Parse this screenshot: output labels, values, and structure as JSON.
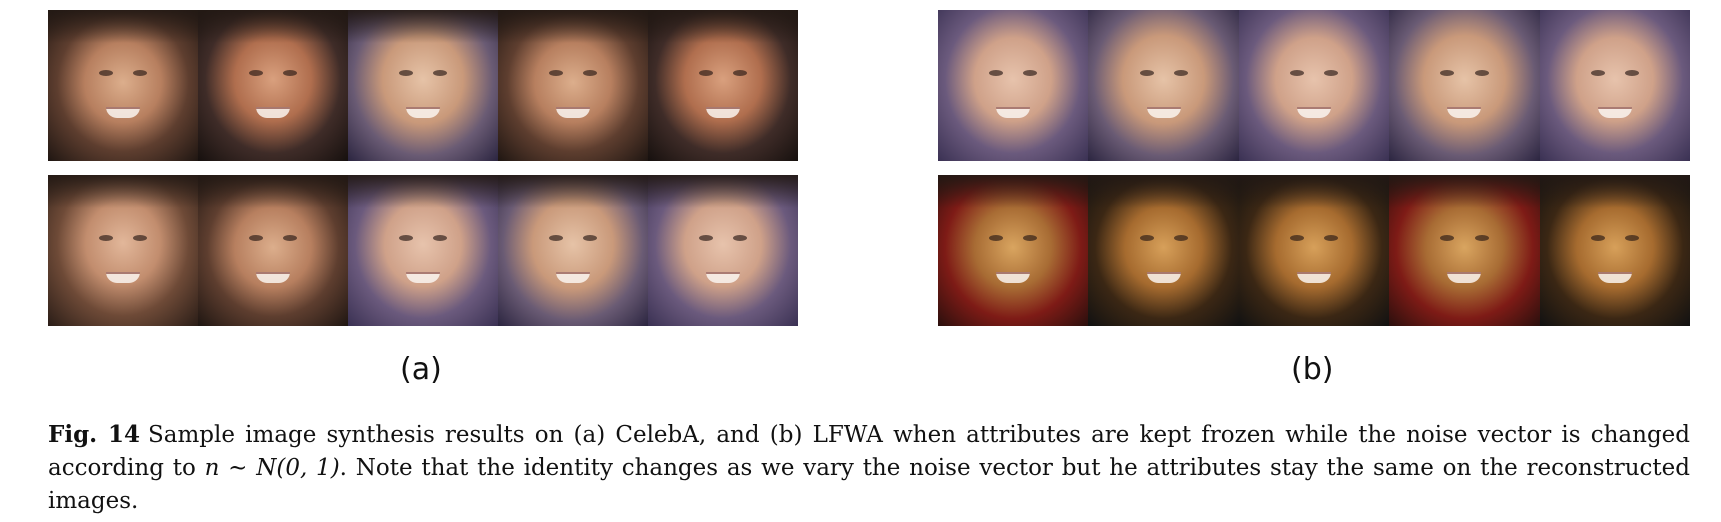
{
  "panels": [
    {
      "id": "a",
      "label": "(a)",
      "rows": 2,
      "images_per_row": 5,
      "content": "CelebA synthesized faces"
    },
    {
      "id": "b",
      "label": "(b)",
      "rows": 2,
      "images_per_row": 5,
      "content": "LFWA synthesized faces"
    }
  ],
  "caption": {
    "figure_label": "Fig. 14",
    "text_before_math": "Sample image synthesis results on (a) CelebA, and (b) LFWA when attributes are kept frozen while the noise vector is changed according to",
    "math": "n ∼ N(0, 1)",
    "text_after_math": ". Note that the identity changes as we vary the noise vector but he attributes stay the same on the reconstructed images."
  }
}
